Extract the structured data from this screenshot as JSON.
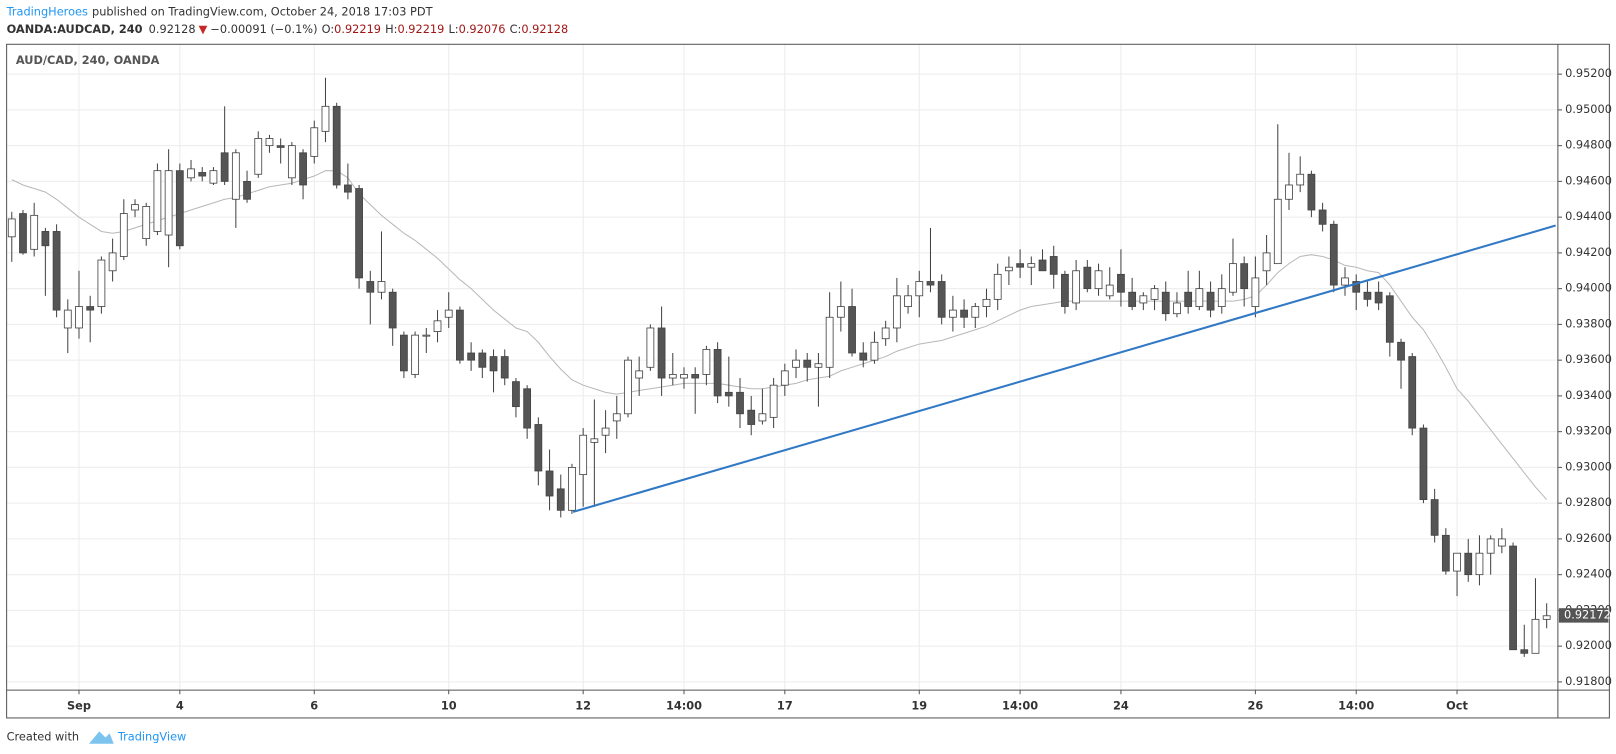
{
  "header": {
    "author": "TradingHeroes",
    "published": "published on TradingView.com, October 24, 2018 17:03 PDT",
    "symbol": "OANDA:AUDCAD, 240",
    "last": "0.92128",
    "change_arrow": "▼",
    "change": "−0.00091 (−0.1%)",
    "open_label": "O:",
    "open": "0.92219",
    "high_label": "H:",
    "high": "0.92219",
    "low_label": "L:",
    "low": "0.92076",
    "close_label": "C:",
    "close": "0.92128"
  },
  "footer": {
    "created": "Created with",
    "brand": "TradingView"
  },
  "chart_data": {
    "type": "candlestick",
    "title": "AUD/CAD, 240, OANDA",
    "xlim": [
      -0.46,
      138
    ],
    "xticks": [
      {
        "value": 6,
        "label": "Sep"
      },
      {
        "value": 15,
        "label": "4"
      },
      {
        "value": 27,
        "label": "6"
      },
      {
        "value": 39,
        "label": "10"
      },
      {
        "value": 51,
        "label": "12"
      },
      {
        "value": 60,
        "label": "14:00"
      },
      {
        "value": 69,
        "label": "17"
      },
      {
        "value": 81,
        "label": "19"
      },
      {
        "value": 90,
        "label": "14:00"
      },
      {
        "value": 99,
        "label": "24"
      },
      {
        "value": 111,
        "label": "26"
      },
      {
        "value": 120,
        "label": "14:00"
      },
      {
        "value": 129,
        "label": "Oct"
      }
    ],
    "ylim": [
      0.91754,
      0.95367
    ],
    "yticks": [
      {
        "value": 0.918,
        "label": "0.91800"
      },
      {
        "value": 0.92,
        "label": "0.92000"
      },
      {
        "value": 0.922,
        "label": "0.92200"
      },
      {
        "value": 0.924,
        "label": "0.92400"
      },
      {
        "value": 0.926,
        "label": "0.92600"
      },
      {
        "value": 0.928,
        "label": "0.92800"
      },
      {
        "value": 0.93,
        "label": "0.93000"
      },
      {
        "value": 0.932,
        "label": "0.93200"
      },
      {
        "value": 0.934,
        "label": "0.93400"
      },
      {
        "value": 0.936,
        "label": "0.93600"
      },
      {
        "value": 0.938,
        "label": "0.93800"
      },
      {
        "value": 0.94,
        "label": "0.94000"
      },
      {
        "value": 0.942,
        "label": "0.94200"
      },
      {
        "value": 0.944,
        "label": "0.94400"
      },
      {
        "value": 0.946,
        "label": "0.94600"
      },
      {
        "value": 0.948,
        "label": "0.94800"
      },
      {
        "value": 0.95,
        "label": "0.95000"
      },
      {
        "value": 0.952,
        "label": "0.95200"
      }
    ],
    "grid": true,
    "up_color": "#ffffff",
    "down_color": "#555555",
    "edge_color": "#444444",
    "open": [
      0.9429,
      0.9442,
      0.9422,
      0.9432,
      0.9432,
      0.9378,
      0.9378,
      0.939,
      0.939,
      0.941,
      0.9418,
      0.9444,
      0.9428,
      0.9432,
      0.943,
      0.9466,
      0.9462,
      0.9465,
      0.9459,
      0.9476,
      0.945,
      0.946,
      0.9464,
      0.948,
      0.948,
      0.9462,
      0.9476,
      0.9474,
      0.9488,
      0.9502,
      0.9458,
      0.9456,
      0.9404,
      0.9398,
      0.9398,
      0.9374,
      0.9352,
      0.9374,
      0.9376,
      0.9384,
      0.9388,
      0.9364,
      0.9364,
      0.9362,
      0.9362,
      0.9348,
      0.9344,
      0.9324,
      0.9298,
      0.9288,
      0.9276,
      0.9296,
      0.9314,
      0.9318,
      0.9326,
      0.933,
      0.935,
      0.9356,
      0.9378,
      0.935,
      0.935,
      0.9352,
      0.9352,
      0.9366,
      0.9342,
      0.9342,
      0.9332,
      0.9326,
      0.9328,
      0.9346,
      0.9356,
      0.936,
      0.9356,
      0.9356,
      0.9384,
      0.939,
      0.9364,
      0.936,
      0.9372,
      0.9378,
      0.939,
      0.9396,
      0.9404,
      0.9404,
      0.9384,
      0.9388,
      0.9384,
      0.939,
      0.9394,
      0.941,
      0.9414,
      0.9412,
      0.9416,
      0.9418,
      0.9408,
      0.9392,
      0.9412,
      0.94,
      0.9396,
      0.9408,
      0.9398,
      0.9392,
      0.9394,
      0.9398,
      0.9386,
      0.9398,
      0.939,
      0.9398,
      0.939,
      0.9398,
      0.9414,
      0.939,
      0.941,
      0.9414,
      0.945,
      0.9458,
      0.9464,
      0.9444,
      0.9436,
      0.9402,
      0.9404,
      0.9398,
      0.9398,
      0.9396,
      0.937,
      0.9362,
      0.9322,
      0.9282,
      0.9262,
      0.9242,
      0.9252,
      0.924,
      0.9252,
      0.9256,
      0.9256,
      0.9198,
      0.9196,
      0.9215
    ],
    "high": [
      0.9443,
      0.9444,
      0.9448,
      0.9434,
      0.9436,
      0.9394,
      0.941,
      0.9396,
      0.9418,
      0.9428,
      0.945,
      0.945,
      0.9448,
      0.947,
      0.9478,
      0.947,
      0.9472,
      0.9468,
      0.9468,
      0.9502,
      0.9478,
      0.9466,
      0.9488,
      0.9486,
      0.9484,
      0.9482,
      0.9478,
      0.9494,
      0.9518,
      0.9504,
      0.947,
      0.9458,
      0.941,
      0.9432,
      0.94,
      0.9376,
      0.9376,
      0.9378,
      0.9388,
      0.9398,
      0.939,
      0.937,
      0.9366,
      0.9366,
      0.9366,
      0.935,
      0.9346,
      0.9328,
      0.931,
      0.9296,
      0.9302,
      0.9322,
      0.9338,
      0.9332,
      0.934,
      0.9362,
      0.9362,
      0.938,
      0.939,
      0.9364,
      0.9356,
      0.9356,
      0.9368,
      0.937,
      0.9362,
      0.935,
      0.934,
      0.9344,
      0.935,
      0.9358,
      0.9366,
      0.9364,
      0.9364,
      0.9398,
      0.9404,
      0.94,
      0.937,
      0.9376,
      0.9382,
      0.9406,
      0.9402,
      0.941,
      0.9434,
      0.9408,
      0.9396,
      0.9394,
      0.9392,
      0.94,
      0.9414,
      0.9418,
      0.9422,
      0.9418,
      0.9422,
      0.9424,
      0.941,
      0.9416,
      0.9416,
      0.9414,
      0.9412,
      0.9422,
      0.9406,
      0.9398,
      0.9402,
      0.9404,
      0.9398,
      0.941,
      0.941,
      0.9404,
      0.9408,
      0.9428,
      0.9418,
      0.9418,
      0.943,
      0.9492,
      0.9476,
      0.9474,
      0.9466,
      0.9448,
      0.9438,
      0.9412,
      0.9408,
      0.9404,
      0.9404,
      0.9398,
      0.9372,
      0.9364,
      0.9324,
      0.9288,
      0.9266,
      0.9252,
      0.926,
      0.9262,
      0.9262,
      0.9266,
      0.9258,
      0.9212,
      0.9238,
      0.9224
    ],
    "low": [
      0.9415,
      0.9419,
      0.9418,
      0.9396,
      0.9384,
      0.9364,
      0.9372,
      0.937,
      0.9386,
      0.9404,
      0.9416,
      0.944,
      0.9424,
      0.943,
      0.9412,
      0.9422,
      0.946,
      0.946,
      0.9458,
      0.9458,
      0.9434,
      0.9448,
      0.9462,
      0.9476,
      0.947,
      0.9458,
      0.945,
      0.947,
      0.9482,
      0.9456,
      0.945,
      0.94,
      0.938,
      0.9394,
      0.9368,
      0.935,
      0.935,
      0.9364,
      0.937,
      0.9378,
      0.9358,
      0.9354,
      0.935,
      0.9342,
      0.9346,
      0.9328,
      0.9316,
      0.929,
      0.9276,
      0.9272,
      0.9274,
      0.9278,
      0.9278,
      0.9308,
      0.9316,
      0.9328,
      0.934,
      0.9354,
      0.934,
      0.9346,
      0.9344,
      0.933,
      0.9346,
      0.9336,
      0.9334,
      0.9322,
      0.9318,
      0.9324,
      0.9322,
      0.934,
      0.935,
      0.9348,
      0.9334,
      0.935,
      0.9376,
      0.9362,
      0.9356,
      0.9358,
      0.9368,
      0.937,
      0.9386,
      0.9384,
      0.9398,
      0.938,
      0.9376,
      0.9378,
      0.9378,
      0.9384,
      0.9388,
      0.9402,
      0.9406,
      0.9402,
      0.9412,
      0.94,
      0.9386,
      0.9388,
      0.9398,
      0.9396,
      0.9394,
      0.939,
      0.9388,
      0.9388,
      0.9388,
      0.9382,
      0.9384,
      0.9386,
      0.9388,
      0.9384,
      0.9386,
      0.9396,
      0.939,
      0.9384,
      0.9402,
      0.9414,
      0.9444,
      0.9454,
      0.944,
      0.9432,
      0.9398,
      0.9396,
      0.9388,
      0.939,
      0.9388,
      0.9362,
      0.9344,
      0.9318,
      0.928,
      0.9258,
      0.924,
      0.9228,
      0.9236,
      0.9234,
      0.924,
      0.9252,
      0.9198,
      0.9194,
      0.9196,
      0.921
    ],
    "close": [
      0.9439,
      0.942,
      0.9441,
      0.9424,
      0.9388,
      0.9388,
      0.939,
      0.9388,
      0.9416,
      0.942,
      0.9442,
      0.9447,
      0.9446,
      0.9466,
      0.9466,
      0.9424,
      0.9467,
      0.9463,
      0.9466,
      0.946,
      0.9476,
      0.945,
      0.9484,
      0.9484,
      0.9479,
      0.948,
      0.9458,
      0.949,
      0.9502,
      0.9458,
      0.9454,
      0.9406,
      0.9398,
      0.9404,
      0.9378,
      0.9354,
      0.9374,
      0.9374,
      0.9382,
      0.9388,
      0.936,
      0.936,
      0.9356,
      0.9354,
      0.935,
      0.9334,
      0.9322,
      0.9298,
      0.9284,
      0.9276,
      0.93,
      0.9318,
      0.9316,
      0.9322,
      0.933,
      0.936,
      0.9354,
      0.9378,
      0.935,
      0.9352,
      0.9352,
      0.935,
      0.9366,
      0.934,
      0.934,
      0.933,
      0.9324,
      0.933,
      0.9346,
      0.9354,
      0.936,
      0.9356,
      0.9358,
      0.9384,
      0.939,
      0.9364,
      0.936,
      0.937,
      0.9378,
      0.9396,
      0.9396,
      0.9404,
      0.9402,
      0.9384,
      0.9388,
      0.9384,
      0.939,
      0.9394,
      0.9408,
      0.9412,
      0.9412,
      0.9414,
      0.941,
      0.9408,
      0.939,
      0.941,
      0.94,
      0.941,
      0.9402,
      0.9398,
      0.939,
      0.9396,
      0.94,
      0.9386,
      0.9392,
      0.939,
      0.94,
      0.9388,
      0.94,
      0.9414,
      0.94,
      0.9406,
      0.942,
      0.945,
      0.9458,
      0.9464,
      0.9444,
      0.9436,
      0.9402,
      0.9406,
      0.9398,
      0.9394,
      0.9392,
      0.937,
      0.936,
      0.9322,
      0.9282,
      0.9262,
      0.9242,
      0.9252,
      0.924,
      0.9252,
      0.926,
      0.926,
      0.9198,
      0.9196,
      0.9215,
      0.9217
    ],
    "ma": {
      "color": "#b8b8b8",
      "values": [
        0.9461,
        0.9458,
        0.9456,
        0.9454,
        0.945,
        0.9445,
        0.944,
        0.9436,
        0.9432,
        0.9431,
        0.9432,
        0.9434,
        0.9436,
        0.9438,
        0.944,
        0.9442,
        0.9444,
        0.9446,
        0.9448,
        0.945,
        0.9451,
        0.9453,
        0.9455,
        0.9457,
        0.9458,
        0.9459,
        0.9461,
        0.9463,
        0.9466,
        0.9466,
        0.9462,
        0.9453,
        0.9447,
        0.9441,
        0.9436,
        0.9431,
        0.9427,
        0.9422,
        0.9417,
        0.9411,
        0.9405,
        0.94,
        0.9394,
        0.9388,
        0.9383,
        0.9378,
        0.9376,
        0.937,
        0.9362,
        0.9355,
        0.9349,
        0.9346,
        0.9344,
        0.9342,
        0.9341,
        0.9342,
        0.9343,
        0.9344,
        0.9345,
        0.9346,
        0.9347,
        0.9347,
        0.9347,
        0.9347,
        0.9346,
        0.9345,
        0.9344,
        0.9344,
        0.9345,
        0.9346,
        0.9347,
        0.9349,
        0.935,
        0.9351,
        0.9354,
        0.9356,
        0.9358,
        0.936,
        0.9362,
        0.9365,
        0.9367,
        0.9369,
        0.937,
        0.9371,
        0.9373,
        0.9375,
        0.9377,
        0.9379,
        0.9382,
        0.9385,
        0.9388,
        0.939,
        0.9391,
        0.9392,
        0.9393,
        0.9393,
        0.9393,
        0.9393,
        0.9393,
        0.9393,
        0.9393,
        0.9393,
        0.9393,
        0.9393,
        0.9393,
        0.9393,
        0.9393,
        0.9393,
        0.9393,
        0.9393,
        0.9394,
        0.9396,
        0.9402,
        0.9409,
        0.9414,
        0.9418,
        0.9419,
        0.9418,
        0.9416,
        0.9413,
        0.9412,
        0.941,
        0.9409,
        0.9402,
        0.9393,
        0.9384,
        0.9377,
        0.9367,
        0.9356,
        0.9344,
        0.9337,
        0.9329,
        0.9321,
        0.9313,
        0.9305,
        0.9297,
        0.9289,
        0.9282
      ]
    },
    "trendline": {
      "color": "#3179c5",
      "x": [
        50.1,
        137.8
      ],
      "values": [
        0.92751,
        0.94353
      ]
    },
    "last_price": {
      "value": 0.92172,
      "label": "0.92172"
    }
  }
}
